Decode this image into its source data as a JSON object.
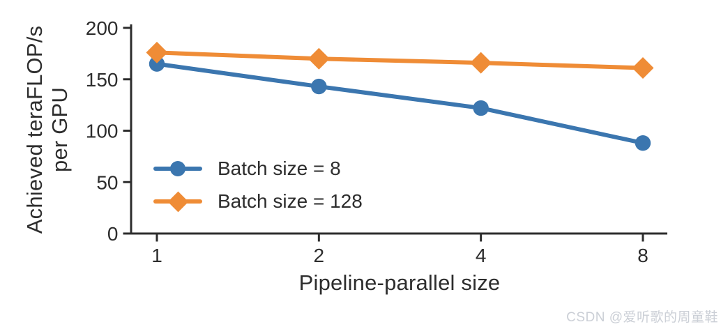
{
  "chart_data": {
    "type": "line",
    "title": "",
    "xlabel": "Pipeline-parallel size",
    "ylabel": "Achieved teraFLOP/s per GPU",
    "ylabel_lines": [
      "Achieved teraFLOP/s",
      "per GPU"
    ],
    "x": [
      1,
      2,
      4,
      8
    ],
    "x_scale": "log2",
    "xtick_labels": [
      "1",
      "2",
      "4",
      "8"
    ],
    "yticks": [
      0,
      50,
      100,
      150,
      200
    ],
    "ylim": [
      0,
      200
    ],
    "grid": false,
    "legend_position": "inside-lower-left",
    "series": [
      {
        "name": "Batch size = 8",
        "color": "#3B76AF",
        "marker": "circle",
        "values": [
          165,
          143,
          122,
          88
        ]
      },
      {
        "name": "Batch size = 128",
        "color": "#EF8C36",
        "marker": "diamond",
        "values": [
          176,
          170,
          166,
          161
        ]
      }
    ]
  },
  "watermark": {
    "text": "CSDN @爱听歌的周童鞋",
    "color": "#CBCFD6"
  },
  "style": {
    "axis_color": "#2D2D2D",
    "text_color": "#2D2D2D",
    "background": "#FFFFFF"
  }
}
